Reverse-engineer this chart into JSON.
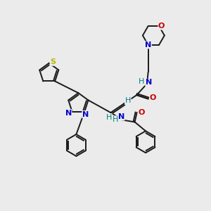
{
  "bg_color": "#ebebeb",
  "atom_colors": {
    "C": "#000000",
    "N": "#0000cc",
    "O": "#cc0000",
    "S": "#b8b800",
    "H": "#008080"
  },
  "bond_color": "#1a1a1a",
  "bond_width": 1.4,
  "figsize": [
    3.0,
    3.0
  ],
  "dpi": 100,
  "xlim": [
    0,
    10
  ],
  "ylim": [
    0,
    10
  ]
}
